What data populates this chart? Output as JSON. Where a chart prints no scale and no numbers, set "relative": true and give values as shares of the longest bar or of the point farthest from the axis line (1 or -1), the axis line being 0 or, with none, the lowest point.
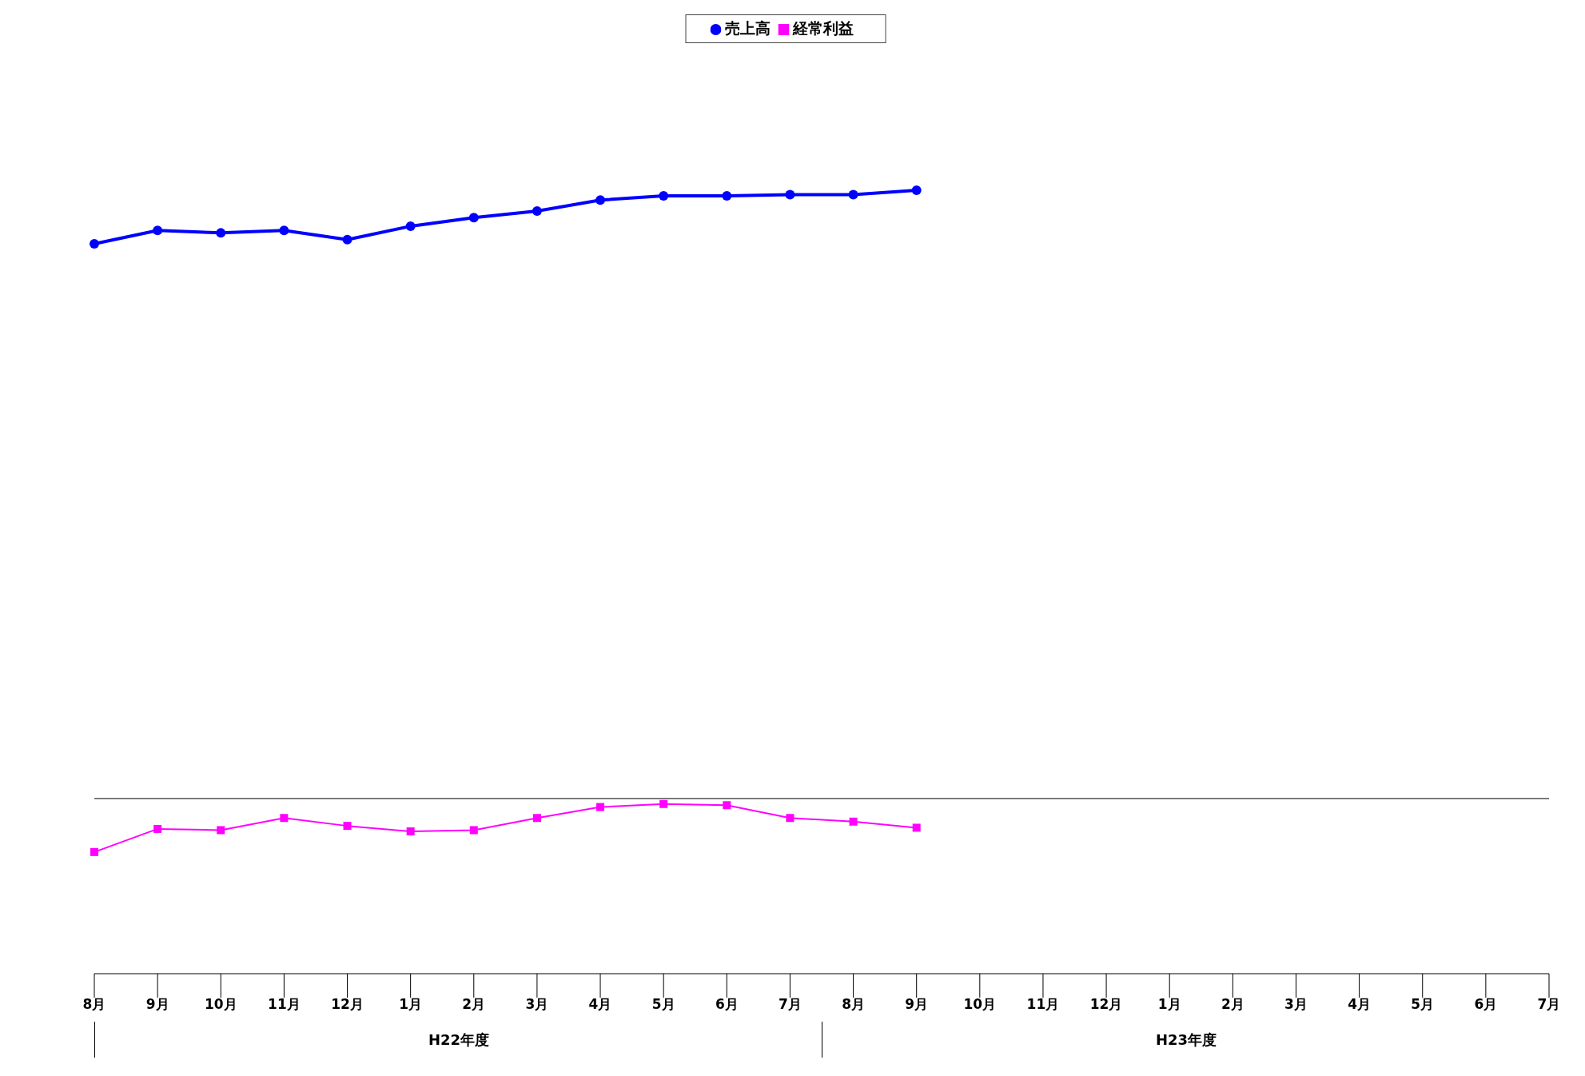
{
  "chart_data": {
    "type": "line",
    "categories": [
      "8月",
      "9月",
      "10月",
      "11月",
      "12月",
      "1月",
      "2月",
      "3月",
      "4月",
      "5月",
      "6月",
      "7月",
      "8月",
      "9月",
      "10月",
      "11月",
      "12月",
      "1月",
      "2月",
      "3月",
      "4月",
      "5月",
      "6月",
      "7月"
    ],
    "series": [
      {
        "name": "売上高",
        "color": "#0000ff",
        "marker": "circle",
        "values": [
          0.912,
          0.934,
          0.93,
          0.934,
          0.919,
          0.941,
          0.955,
          0.966,
          0.984,
          0.991,
          0.991,
          0.993,
          0.993,
          1,
          null,
          null,
          null,
          null,
          null,
          null,
          null,
          null,
          null,
          null
        ]
      },
      {
        "name": "経常利益",
        "color": "#ff00ff",
        "marker": "square",
        "values": [
          -0.088,
          -0.05,
          -0.052,
          -0.032,
          -0.045,
          -0.054,
          -0.052,
          -0.032,
          -0.014,
          -0.009,
          -0.011,
          -0.032,
          -0.038,
          -0.048,
          null,
          null,
          null,
          null,
          null,
          null,
          null,
          null,
          null,
          null
        ]
      }
    ],
    "relative": true,
    "annotations": [
      "H22年度",
      "H23年度"
    ],
    "legend": "top"
  }
}
